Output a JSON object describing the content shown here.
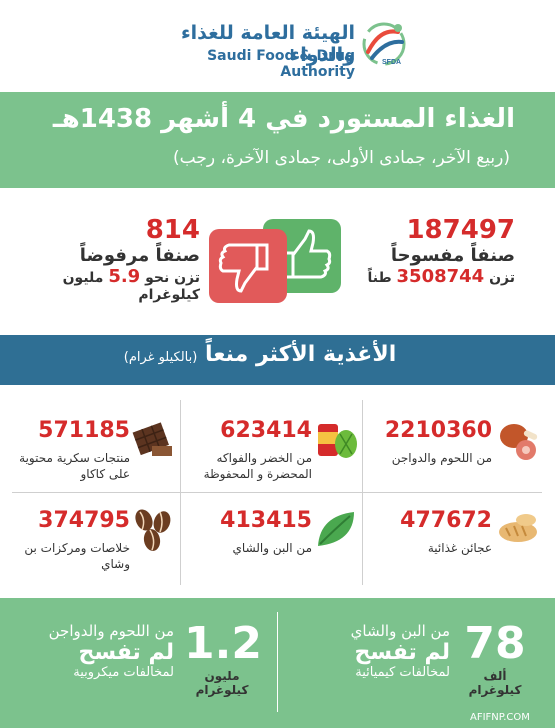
{
  "header": {
    "org_name_ar": "الهيئة العامة للغذاء والدواء",
    "org_name_en": "Saudi Food & Drug Authority",
    "logo_text": "SFDA"
  },
  "title": {
    "main": "الغذاء المستورد في 4 أشهر 1438هـ",
    "sub": "(ربيع الآخر، جمادى الأولى، جمادى الآخرة، رجب)"
  },
  "stats": {
    "approved": {
      "number": "187497",
      "label": "صنفاً مفسوحاً",
      "weight_prefix": "تزن",
      "weight_value": "3508744",
      "weight_unit": "طناً"
    },
    "rejected": {
      "number": "814",
      "label": "صنفاً مرفوضاً",
      "weight_prefix": "تزن نحو",
      "weight_value": "5.9",
      "weight_unit": "مليون كيلوغرام"
    }
  },
  "banner": {
    "title": "الأغذية الأكثر منعاً",
    "unit": "(بالكيلو غرام)"
  },
  "items": [
    {
      "number": "2210360",
      "desc": "من اللحوم والدواجن",
      "icon": "meat-icon"
    },
    {
      "number": "623414",
      "desc": "من الخضر والفواكه المحضرة و المحفوظة",
      "icon": "canned-food-icon"
    },
    {
      "number": "571185",
      "desc": "منتجات سكرية محتوية على كاكاو",
      "icon": "chocolate-icon"
    },
    {
      "number": "477672",
      "desc": "عجائن غذائية",
      "icon": "bread-icon"
    },
    {
      "number": "413415",
      "desc": "من البن والشاي",
      "icon": "tea-leaf-icon"
    },
    {
      "number": "374795",
      "desc": "خلاصات ومركزات بن وشاي",
      "icon": "coffee-beans-icon"
    }
  ],
  "bottom": {
    "right": {
      "big": "78",
      "unit_line1": "ألف",
      "unit_line2": "كيلوغرام",
      "line1": "من البن والشاي",
      "line2": "لم تفسح",
      "line3": "لمخالفات كيميائية"
    },
    "left": {
      "big": "1.2",
      "unit_line1": "مليون",
      "unit_line2": "كيلوغرام",
      "line1": "من اللحوم والدواجن",
      "line2": "لم تفسح",
      "line3": "لمخالفات ميكروبية"
    }
  },
  "watermark": "AFIFNP.COM",
  "colors": {
    "green": "#7cc28d",
    "blue": "#2f6f94",
    "red": "#d52b2b",
    "dark_green_thumb": "#5fb36a",
    "red_thumb": "#e15a5a"
  }
}
